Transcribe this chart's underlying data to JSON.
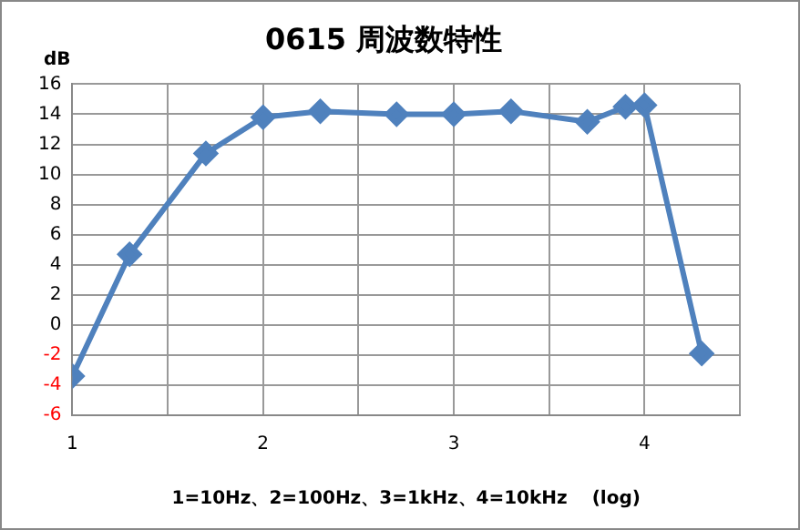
{
  "chart_data": {
    "type": "line",
    "title": "0615 周波数特性",
    "ylabel": "dB",
    "xlabel": "1=10Hz、2=100Hz、3=1kHz、4=10kHz　 (log)",
    "x": [
      1.0,
      1.3,
      1.7,
      2.0,
      2.3,
      2.7,
      3.0,
      3.3,
      3.7,
      3.9,
      4.0,
      4.3
    ],
    "series": [
      {
        "color": "#4f81bd",
        "values": [
          -3.4,
          4.7,
          11.4,
          13.8,
          14.2,
          14.0,
          14.0,
          14.2,
          13.5,
          14.5,
          14.6,
          -1.9
        ]
      }
    ],
    "xlim": [
      1,
      4.5
    ],
    "xticks": [
      1,
      {
        "value": 1.5,
        "label": null
      },
      2,
      {
        "value": 2.5,
        "label": null
      },
      3,
      {
        "value": 3.5,
        "label": null
      },
      4,
      {
        "value": 4.5,
        "label": null
      }
    ],
    "ylim": [
      -6,
      16
    ],
    "yticks": [
      -6,
      -4,
      -2,
      0,
      2,
      4,
      6,
      8,
      10,
      12,
      14,
      16
    ],
    "grid": true,
    "legend": false,
    "marker": "diamond",
    "line_style": "solid"
  }
}
